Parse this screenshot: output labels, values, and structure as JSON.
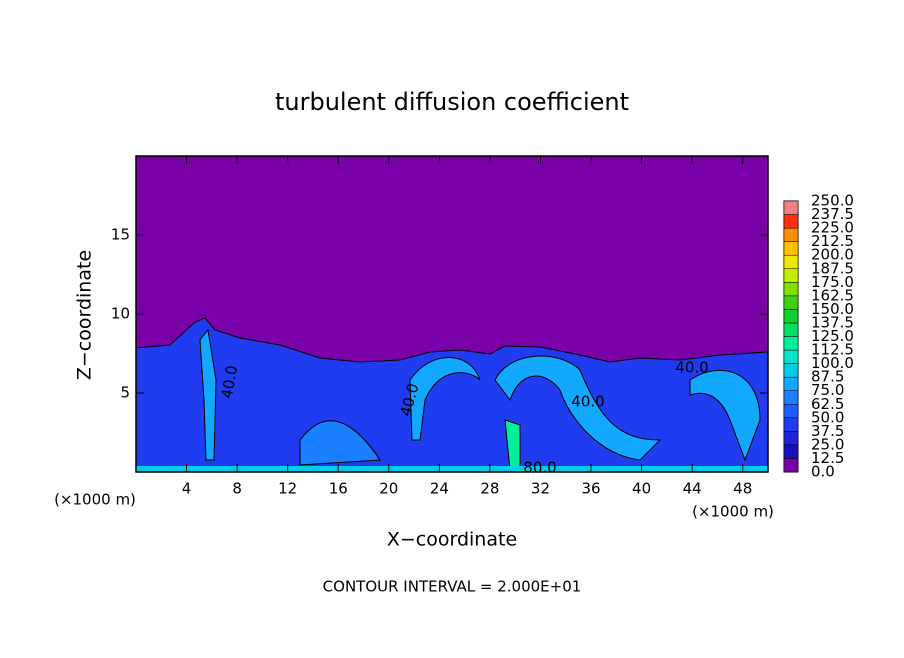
{
  "chart_data": {
    "type": "contour",
    "title": "turbulent diffusion coefficient",
    "x_label": "X−coordinate",
    "y_label": "Z−coordinate",
    "x_unit": "(×1000 m)",
    "x_unit_right": "(×1000 m)",
    "footnote": "CONTOUR INTERVAL = 2.000E+01",
    "xlim": [
      0,
      50
    ],
    "ylim": [
      0,
      20
    ],
    "xticks": [
      4,
      8,
      12,
      16,
      20,
      24,
      28,
      32,
      36,
      40,
      44,
      48
    ],
    "yticks": [
      5,
      10,
      15
    ],
    "contour_labels": [
      "40.0",
      "40.0",
      "40.0",
      "40.0",
      "80.0"
    ],
    "colorbar": {
      "ticks": [
        {
          "value": 0,
          "label": "0.0"
        },
        12.5,
        {
          "value": 25,
          "label": "25.0"
        },
        37.5,
        {
          "value": 50,
          "label": "50.0"
        },
        62.5,
        {
          "value": 75,
          "label": "75.0"
        },
        87.5,
        {
          "value": 100,
          "label": "100.0"
        },
        112.5,
        {
          "value": 125,
          "label": "125.0"
        },
        137.5,
        {
          "value": 150,
          "label": "150.0"
        },
        162.5,
        {
          "value": 175,
          "label": "175.0"
        },
        187.5,
        {
          "value": 200,
          "label": "200.0"
        },
        212.5,
        {
          "value": 225,
          "label": "225.0"
        },
        237.5,
        {
          "value": 250,
          "label": "250.0"
        }
      ],
      "colors": [
        "#7a00a8",
        "#1a10b8",
        "#1f22d8",
        "#1f3cf0",
        "#1f5cff",
        "#1a80ff",
        "#12a8ff",
        "#00cce8",
        "#00e6c8",
        "#00f09a",
        "#00e060",
        "#10d030",
        "#40d010",
        "#80e000",
        "#c0f000",
        "#f0e800",
        "#ffc000",
        "#ff8c00",
        "#ff3010",
        "#f08080"
      ]
    }
  }
}
